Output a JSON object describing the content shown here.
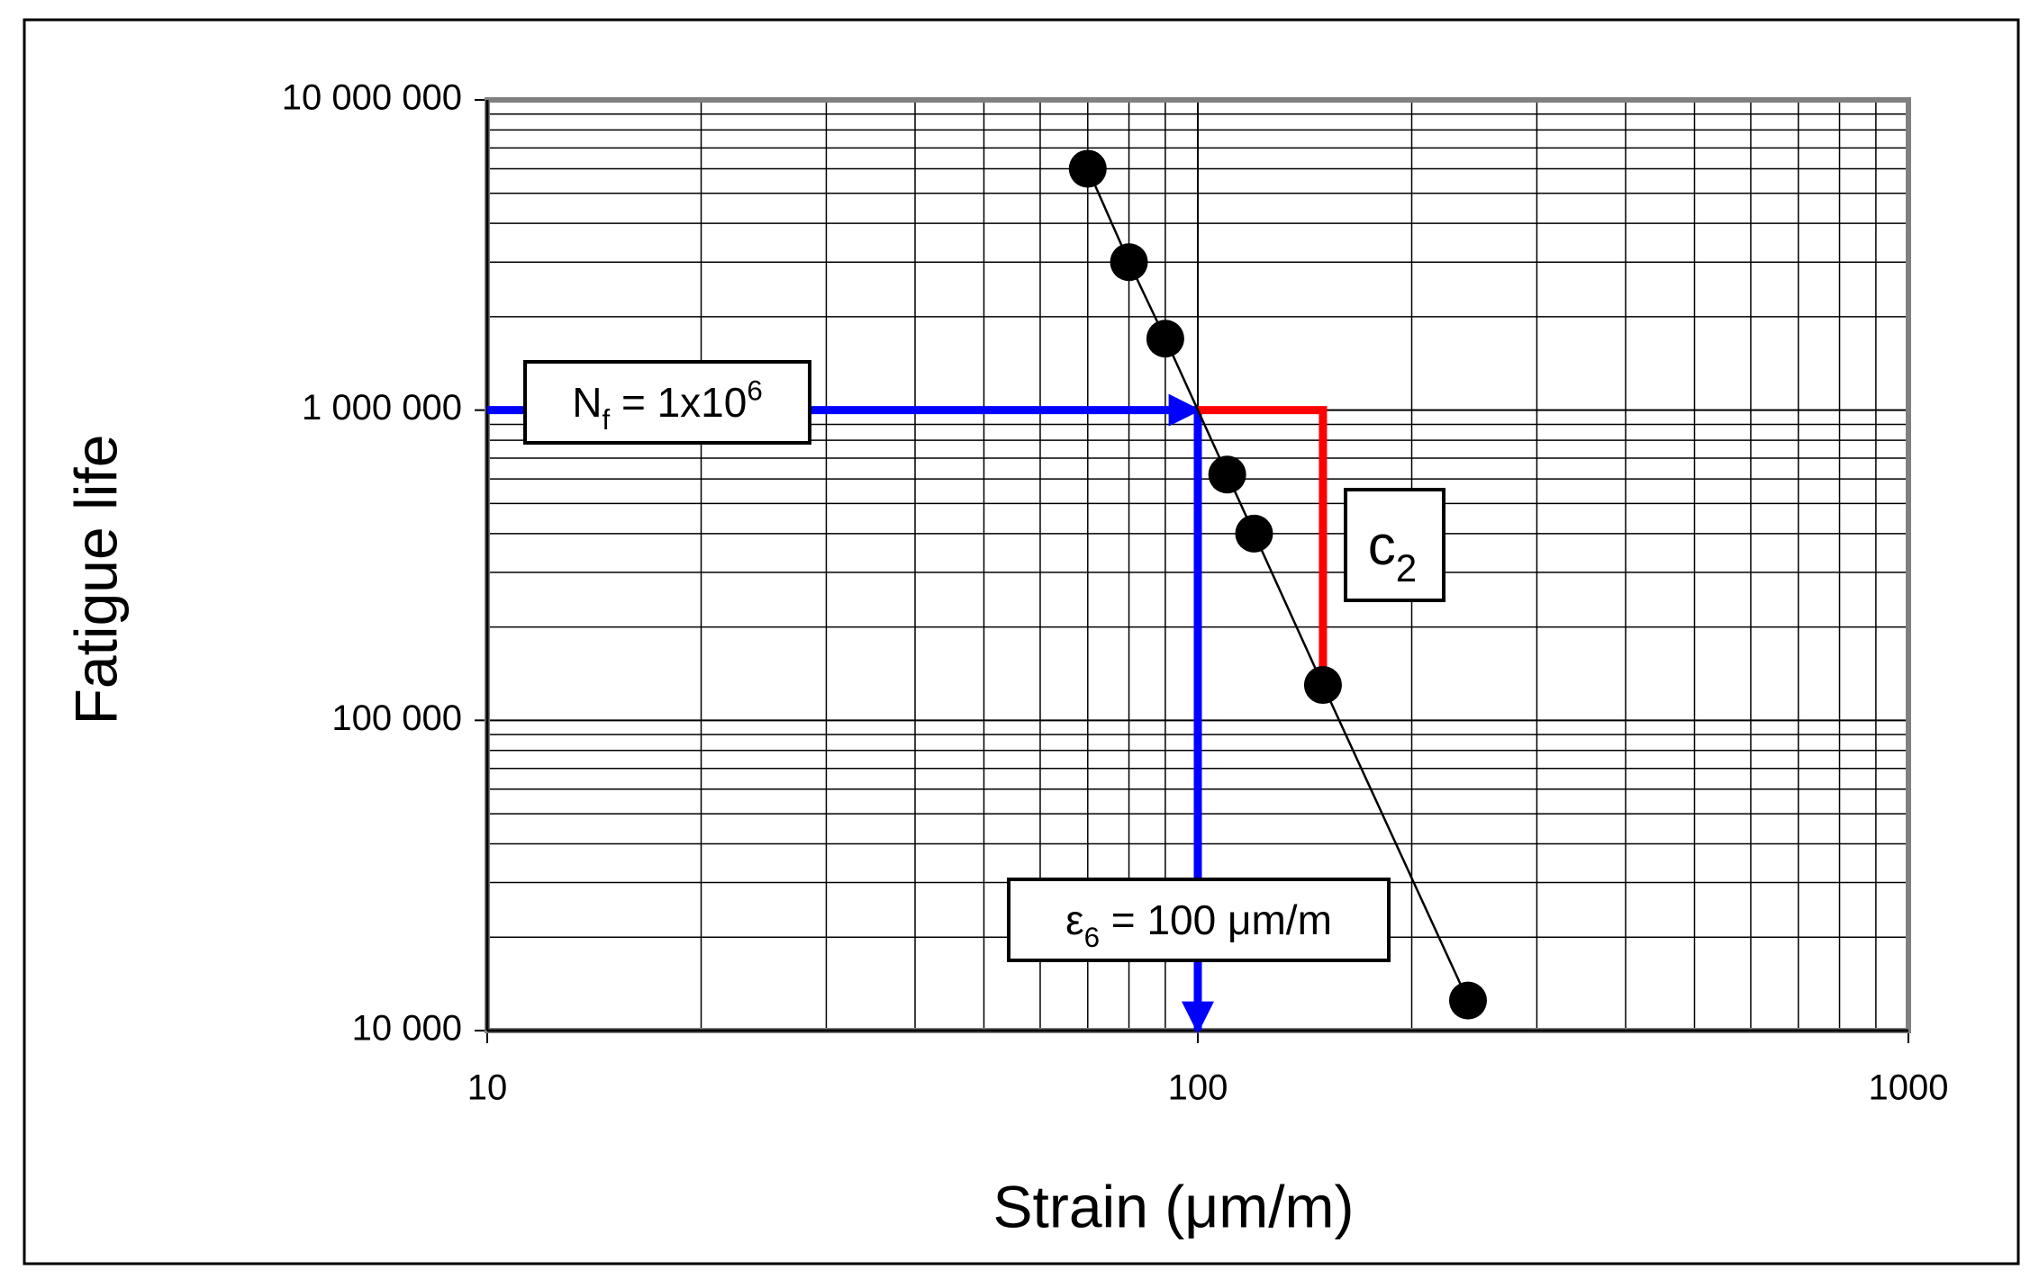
{
  "chart_data": {
    "type": "scatter",
    "x_label": "Strain (μm/m)",
    "y_label": "Fatigue life",
    "xscale": "log",
    "yscale": "log",
    "grid": true,
    "xlim": [
      10,
      1000
    ],
    "xticks": [
      10,
      100,
      1000
    ],
    "ylim": [
      10000,
      10000000
    ],
    "yticks": [
      {
        "value": 10000,
        "label": "10 000"
      },
      {
        "value": 100000,
        "label": "100 000"
      },
      {
        "value": 1000000,
        "label": "1 000 000"
      },
      {
        "value": 10000000,
        "label": "10 000 000"
      }
    ],
    "series": [
      {
        "color": "#000000",
        "line": true,
        "x": [
          70,
          80,
          90,
          110,
          120,
          150,
          240
        ],
        "values": [
          6000000,
          3000000,
          1700000,
          620000,
          400000,
          130000,
          12500
        ]
      }
    ],
    "guides": [
      {
        "color": "#0000ff",
        "arrow": true,
        "x": [
          10,
          100
        ],
        "y": [
          1000000,
          1000000
        ]
      },
      {
        "color": "#0000ff",
        "arrow": true,
        "x": [
          100,
          100
        ],
        "y": [
          1000000,
          10000
        ]
      },
      {
        "color": "#ff0000",
        "arrow": false,
        "x": [
          100,
          150,
          150
        ],
        "y": [
          1000000,
          1000000,
          130000
        ]
      }
    ],
    "annotations": [
      {
        "parts": [
          {
            "text": "N"
          },
          {
            "text": "f",
            "shift": "sub"
          },
          {
            "text": " = 1x10"
          },
          {
            "text": "6",
            "shift": "sup"
          }
        ]
      },
      {
        "parts": [
          {
            "text": "c"
          },
          {
            "text": "2",
            "shift": "sub"
          }
        ]
      },
      {
        "parts": [
          {
            "text": "ε"
          },
          {
            "text": "6",
            "shift": "sub"
          },
          {
            "text": " = 100 μm/m"
          }
        ]
      }
    ]
  }
}
